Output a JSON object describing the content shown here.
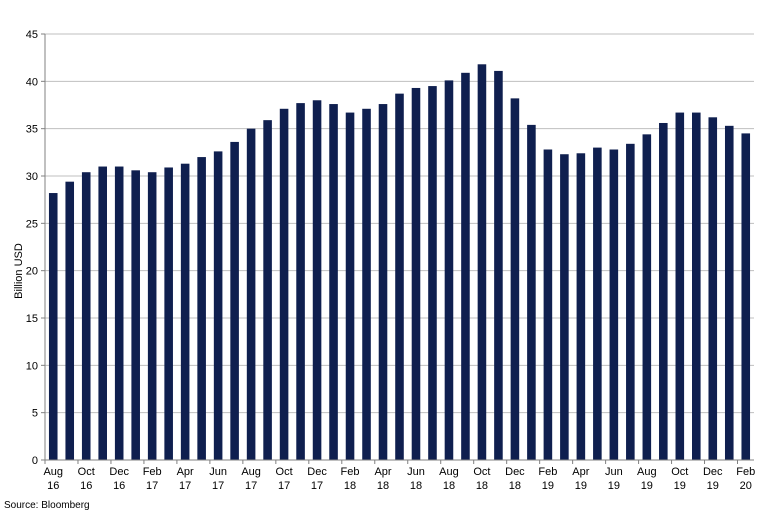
{
  "chart_data": {
    "type": "bar",
    "title": "",
    "xlabel": "",
    "ylabel": "Billion USD",
    "ylim": [
      0,
      45
    ],
    "yticks": [
      0,
      5,
      10,
      15,
      20,
      25,
      30,
      35,
      40,
      45
    ],
    "grid": true,
    "legend": "none",
    "bar_color": "#0f1f4f",
    "grid_color": "#bfbfbf",
    "categories": [
      "Aug 16",
      "Sep 16",
      "Oct 16",
      "Nov 16",
      "Dec 16",
      "Jan 17",
      "Feb 17",
      "Mar 17",
      "Apr 17",
      "May 17",
      "Jun 17",
      "Jul 17",
      "Aug 17",
      "Sep 17",
      "Oct 17",
      "Nov 17",
      "Dec 17",
      "Jan 18",
      "Feb 18",
      "Mar 18",
      "Apr 18",
      "May 18",
      "Jun 18",
      "Jul 18",
      "Aug 18",
      "Sep 18",
      "Oct 18",
      "Nov 18",
      "Dec 18",
      "Jan 19",
      "Feb 19",
      "Mar 19",
      "Apr 19",
      "May 19",
      "Jun 19",
      "Jul 19",
      "Aug 19",
      "Sep 19",
      "Oct 19",
      "Nov 19",
      "Dec 19",
      "Jan 20",
      "Feb 20"
    ],
    "tick_labels": [
      {
        "category": "Aug 16",
        "line1": "Aug",
        "line2": "16"
      },
      {
        "category": "Oct 16",
        "line1": "Oct",
        "line2": "16"
      },
      {
        "category": "Dec 16",
        "line1": "Dec",
        "line2": "16"
      },
      {
        "category": "Feb 17",
        "line1": "Feb",
        "line2": "17"
      },
      {
        "category": "Apr 17",
        "line1": "Apr",
        "line2": "17"
      },
      {
        "category": "Jun 17",
        "line1": "Jun",
        "line2": "17"
      },
      {
        "category": "Aug 17",
        "line1": "Aug",
        "line2": "17"
      },
      {
        "category": "Oct 17",
        "line1": "Oct",
        "line2": "17"
      },
      {
        "category": "Dec 17",
        "line1": "Dec",
        "line2": "17"
      },
      {
        "category": "Feb 18",
        "line1": "Feb",
        "line2": "18"
      },
      {
        "category": "Apr 18",
        "line1": "Apr",
        "line2": "18"
      },
      {
        "category": "Jun 18",
        "line1": "Jun",
        "line2": "18"
      },
      {
        "category": "Aug 18",
        "line1": "Aug",
        "line2": "18"
      },
      {
        "category": "Oct 18",
        "line1": "Oct",
        "line2": "18"
      },
      {
        "category": "Dec 18",
        "line1": "Dec",
        "line2": "18"
      },
      {
        "category": "Feb 19",
        "line1": "Feb",
        "line2": "19"
      },
      {
        "category": "Apr 19",
        "line1": "Apr",
        "line2": "19"
      },
      {
        "category": "Jun 19",
        "line1": "Jun",
        "line2": "19"
      },
      {
        "category": "Aug 19",
        "line1": "Aug",
        "line2": "19"
      },
      {
        "category": "Oct 19",
        "line1": "Oct",
        "line2": "19"
      },
      {
        "category": "Dec 19",
        "line1": "Dec",
        "line2": "19"
      },
      {
        "category": "Feb 20",
        "line1": "Feb",
        "line2": "20"
      }
    ],
    "values": [
      28.2,
      29.4,
      30.4,
      31.0,
      31.0,
      30.6,
      30.4,
      30.9,
      31.3,
      32.0,
      32.6,
      33.6,
      35.0,
      35.9,
      37.1,
      37.7,
      38.0,
      37.6,
      36.7,
      37.1,
      37.6,
      38.7,
      39.3,
      39.5,
      40.1,
      40.9,
      41.8,
      41.1,
      38.2,
      35.4,
      32.8,
      32.3,
      32.4,
      33.0,
      32.8,
      33.4,
      34.4,
      35.6,
      36.7,
      36.7,
      36.2,
      35.3,
      34.5
    ]
  },
  "footer": {
    "source": "Source: Bloomberg"
  }
}
